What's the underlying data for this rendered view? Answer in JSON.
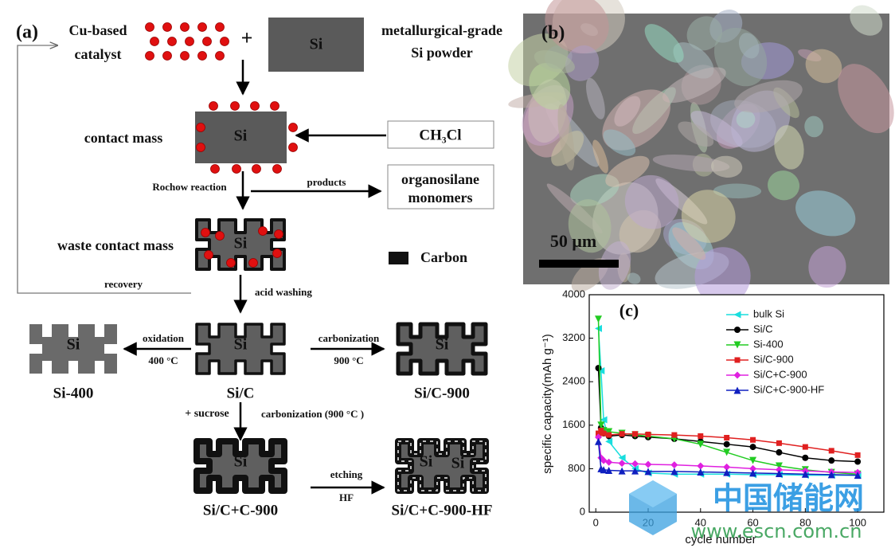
{
  "panel_a": {
    "label": "(a)",
    "catalyst": [
      "Cu-based",
      "catalyst"
    ],
    "plus": "+",
    "si_powder": {
      "box": "Si",
      "label": [
        "metallurgical-grade",
        "Si powder"
      ]
    },
    "contact_mass": {
      "label": "contact  mass",
      "box": "Si"
    },
    "reagent": "CH₃Cl",
    "reaction": "Rochow reaction",
    "products": "products",
    "product_box": [
      "organosilane",
      "monomers"
    ],
    "waste": {
      "label": "waste contact mass",
      "box": "Si"
    },
    "legend": "Carbon",
    "recovery": "recovery",
    "acid": "acid washing",
    "samples": [
      {
        "name": "Si-400",
        "boxes": [
          "Si"
        ]
      },
      {
        "name": "Si/C",
        "boxes": [
          "Si"
        ]
      },
      {
        "name": "Si/C-900",
        "boxes": [
          "Si"
        ]
      },
      {
        "name": "Si/C+C-900",
        "boxes": [
          "Si"
        ]
      },
      {
        "name": "Si/C+C-900-HF",
        "boxes": [
          "Si",
          "Si"
        ]
      }
    ],
    "steps": [
      {
        "name": "oxidation",
        "cond": "400 °C"
      },
      {
        "name": "carbonization",
        "cond": "900 °C"
      },
      {
        "name": "+ sucrose"
      },
      {
        "name": "carbonization (900 °C )"
      },
      {
        "name": "etching",
        "cond": "HF"
      }
    ]
  },
  "panel_b": {
    "label": "(b)",
    "scale": "50 μm"
  },
  "watermark": {
    "name": "中国储能网",
    "url": "www.escn.com.cn"
  },
  "chart_data": {
    "type": "line",
    "title": "(c)",
    "x_label": "cycle number",
    "y_label": "specific capacity(mAh g⁻¹)",
    "x": [
      1,
      2,
      3,
      5,
      10,
      15,
      20,
      30,
      40,
      50,
      60,
      70,
      80,
      90,
      100
    ],
    "xlim": [
      -2.5,
      110
    ],
    "xticks": [
      0,
      20,
      40,
      60,
      80,
      100
    ],
    "ylim": [
      0,
      4000
    ],
    "yticks": [
      0,
      800,
      1600,
      2400,
      3200,
      4000
    ],
    "series": [
      {
        "name": "bulk Si",
        "color": "#19dede",
        "marker": "triangle-left",
        "values": [
          3380,
          2600,
          1700,
          1300,
          1000,
          800,
          720,
          700,
          700,
          700,
          690,
          690,
          680,
          680,
          680
        ]
      },
      {
        "name": "Si/C",
        "color": "#000000",
        "marker": "circle",
        "values": [
          2650,
          1550,
          1450,
          1400,
          1420,
          1400,
          1380,
          1350,
          1300,
          1250,
          1200,
          1100,
          1000,
          950,
          930
        ]
      },
      {
        "name": "Si-400",
        "color": "#22cc22",
        "marker": "triangle-down",
        "values": [
          3550,
          1600,
          1500,
          1480,
          1450,
          1420,
          1400,
          1350,
          1250,
          1100,
          950,
          850,
          780,
          730,
          700
        ]
      },
      {
        "name": "Si/C-900",
        "color": "#e02020",
        "marker": "square",
        "values": [
          1450,
          1500,
          1450,
          1420,
          1440,
          1440,
          1430,
          1420,
          1400,
          1370,
          1330,
          1270,
          1200,
          1130,
          1050
        ]
      },
      {
        "name": "Si/C+C-900",
        "color": "#e020e0",
        "marker": "diamond",
        "values": [
          1380,
          1000,
          950,
          920,
          900,
          890,
          880,
          870,
          850,
          830,
          800,
          780,
          760,
          740,
          730
        ]
      },
      {
        "name": "Si/C+C-900-HF",
        "color": "#1020c0",
        "marker": "triangle-up",
        "values": [
          1300,
          800,
          780,
          770,
          760,
          760,
          750,
          750,
          740,
          730,
          720,
          710,
          700,
          690,
          680
        ]
      }
    ]
  }
}
